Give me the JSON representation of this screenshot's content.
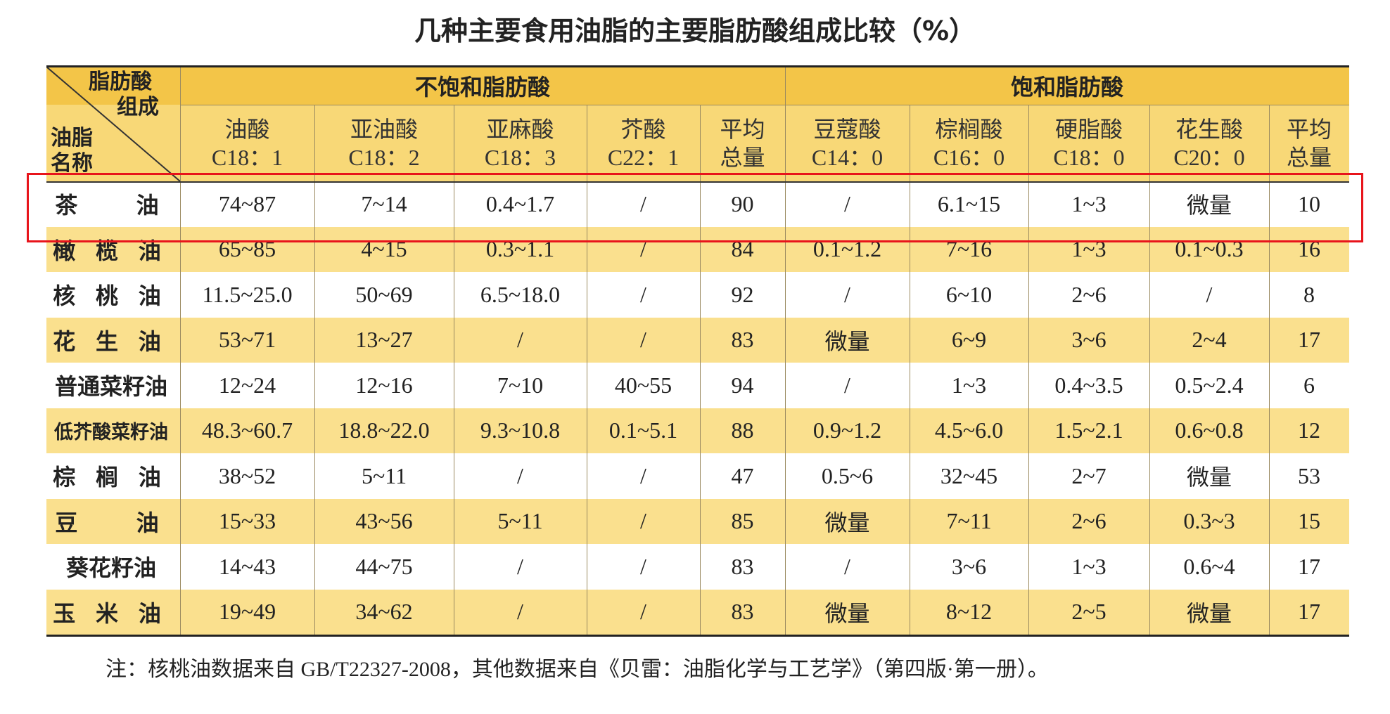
{
  "title": "几种主要食用油脂的主要脂肪酸组成比较（%）",
  "table": {
    "corner": {
      "column_label": [
        "脂肪酸",
        "组成"
      ],
      "row_label": [
        "油脂",
        "名称"
      ]
    },
    "groups": [
      {
        "label": "不饱和脂肪酸",
        "span": 5
      },
      {
        "label": "饱和脂肪酸",
        "span": 5
      }
    ],
    "columns": [
      {
        "name": "油酸",
        "formula": "C18：1"
      },
      {
        "name": "亚油酸",
        "formula": "C18：2"
      },
      {
        "name": "亚麻酸",
        "formula": "C18：3"
      },
      {
        "name": "芥酸",
        "formula": "C22：1"
      },
      {
        "name": "平均",
        "formula": "总量"
      },
      {
        "name": "豆蔻酸",
        "formula": "C14：0"
      },
      {
        "name": "棕榈酸",
        "formula": "C16：0"
      },
      {
        "name": "硬脂酸",
        "formula": "C18：0"
      },
      {
        "name": "花生酸",
        "formula": "C20：0"
      },
      {
        "name": "平均",
        "formula": "总量"
      }
    ],
    "rows": [
      {
        "name": "茶油",
        "cells": [
          "74~87",
          "7~14",
          "0.4~1.7",
          "/",
          "90",
          "/",
          "6.1~15",
          "1~3",
          "微量",
          "10"
        ]
      },
      {
        "name": "橄榄油",
        "cells": [
          "65~85",
          "4~15",
          "0.3~1.1",
          "/",
          "84",
          "0.1~1.2",
          "7~16",
          "1~3",
          "0.1~0.3",
          "16"
        ]
      },
      {
        "name": "核桃油",
        "cells": [
          "11.5~25.0",
          "50~69",
          "6.5~18.0",
          "/",
          "92",
          "/",
          "6~10",
          "2~6",
          "/",
          "8"
        ]
      },
      {
        "name": "花生油",
        "cells": [
          "53~71",
          "13~27",
          "/",
          "/",
          "83",
          "微量",
          "6~9",
          "3~6",
          "2~4",
          "17"
        ]
      },
      {
        "name": "普通菜籽油",
        "cells": [
          "12~24",
          "12~16",
          "7~10",
          "40~55",
          "94",
          "/",
          "1~3",
          "0.4~3.5",
          "0.5~2.4",
          "6"
        ]
      },
      {
        "name": "低芥酸菜籽油",
        "cells": [
          "48.3~60.7",
          "18.8~22.0",
          "9.3~10.8",
          "0.1~5.1",
          "88",
          "0.9~1.2",
          "4.5~6.0",
          "1.5~2.1",
          "0.6~0.8",
          "12"
        ]
      },
      {
        "name": "棕榈油",
        "cells": [
          "38~52",
          "5~11",
          "/",
          "/",
          "47",
          "0.5~6",
          "32~45",
          "2~7",
          "微量",
          "53"
        ]
      },
      {
        "name": "豆油",
        "cells": [
          "15~33",
          "43~56",
          "5~11",
          "/",
          "85",
          "微量",
          "7~11",
          "2~6",
          "0.3~3",
          "15"
        ]
      },
      {
        "name": "葵花籽油",
        "cells": [
          "14~43",
          "44~75",
          "/",
          "/",
          "83",
          "/",
          "3~6",
          "1~3",
          "0.6~4",
          "17"
        ]
      },
      {
        "name": "玉米油",
        "cells": [
          "19~49",
          "34~62",
          "/",
          "/",
          "83",
          "微量",
          "8~12",
          "2~5",
          "微量",
          "17"
        ]
      }
    ]
  },
  "note": "注：核桃油数据来自 GB/T22327-2008，其他数据来自《贝雷：油脂化学与工艺学》（第四版·第一册）。"
}
